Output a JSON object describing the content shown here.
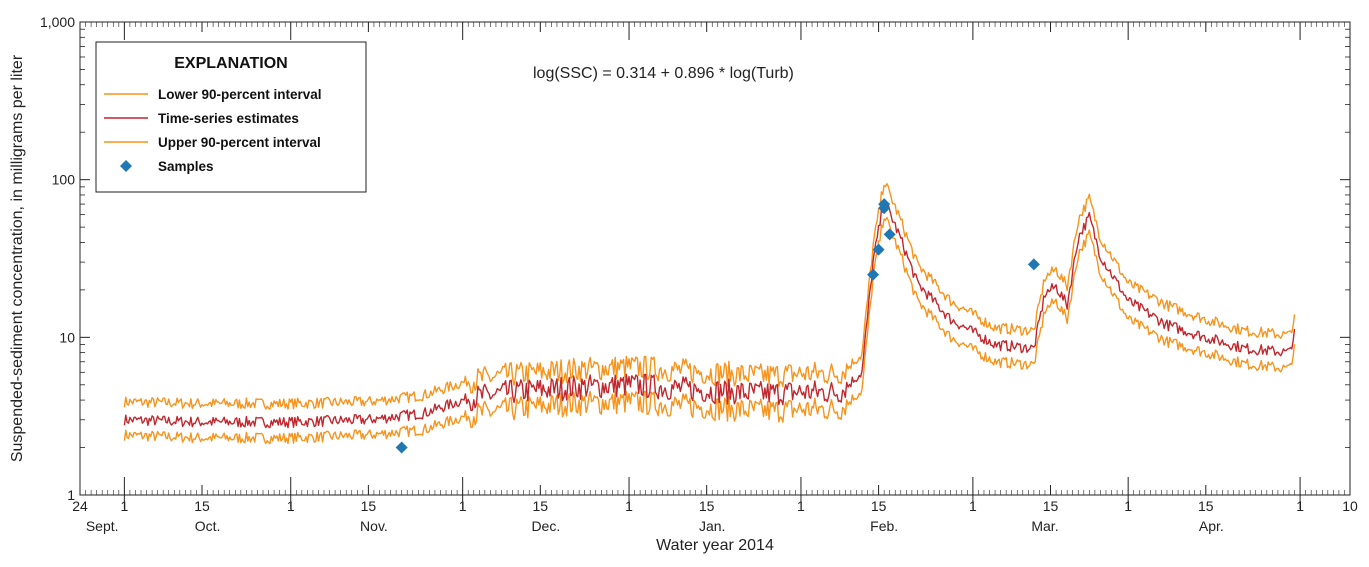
{
  "chart_data": {
    "type": "line",
    "xlabel": "Water year 2014",
    "ylabel": "Suspended-sediment concentration, in milligrams per liter",
    "y_scale": "log",
    "ylim": [
      1,
      1000
    ],
    "y_ticks": [
      {
        "value": 1,
        "label": "1"
      },
      {
        "value": 10,
        "label": "10"
      },
      {
        "value": 100,
        "label": "100"
      },
      {
        "value": 1000,
        "label": "1,000"
      }
    ],
    "xlim": [
      "2013-08-24",
      "2014-04-10"
    ],
    "x_tick_labels": [
      {
        "date": "2013-08-24",
        "label": "24"
      },
      {
        "date": "2013-09-01",
        "label": "1"
      },
      {
        "date": "2013-09-15",
        "label": "15"
      },
      {
        "date": "2013-10-01",
        "label": "1"
      },
      {
        "date": "2013-10-15",
        "label": "15"
      },
      {
        "date": "2013-11-01",
        "label": "1"
      },
      {
        "date": "2013-11-15",
        "label": "15"
      },
      {
        "date": "2013-12-01",
        "label": "1"
      },
      {
        "date": "2013-12-15",
        "label": "15"
      },
      {
        "date": "2014-01-01",
        "label": "1"
      },
      {
        "date": "2014-01-15",
        "label": "15"
      },
      {
        "date": "2014-02-01",
        "label": "1"
      },
      {
        "date": "2014-02-15",
        "label": "15"
      },
      {
        "date": "2014-03-01",
        "label": "1"
      },
      {
        "date": "2014-03-15",
        "label": "15"
      },
      {
        "date": "2014-04-01",
        "label": "1"
      },
      {
        "date": "2014-04-10",
        "label": "10"
      }
    ],
    "month_labels": [
      {
        "date": "2013-08-28",
        "label": "Sept."
      },
      {
        "date": "2013-09-16",
        "label": "Oct."
      },
      {
        "date": "2013-10-16",
        "label": "Nov."
      },
      {
        "date": "2013-11-16",
        "label": "Dec."
      },
      {
        "date": "2013-12-16",
        "label": "Jan."
      },
      {
        "date": "2014-01-16",
        "label": "Feb."
      },
      {
        "date": "2014-02-14",
        "label": "Mar."
      },
      {
        "date": "2014-03-16",
        "label": "Apr."
      }
    ],
    "annotation": "log(SSC) = 0.314 + 0.896 * log(Turb)",
    "legend": {
      "title": "EXPLANATION",
      "position": "top-left",
      "entries": [
        {
          "label": "Lower 90-percent interval",
          "kind": "line",
          "color": "#F7941D"
        },
        {
          "label": "Time-series estimates",
          "kind": "line",
          "color": "#C1272D"
        },
        {
          "label": "Upper 90-percent interval",
          "kind": "line",
          "color": "#F7941D"
        },
        {
          "label": "Samples",
          "kind": "marker",
          "color": "#1F77B4"
        }
      ]
    },
    "series": [
      {
        "name": "Time-series estimates",
        "color": "#C1272D",
        "x": [
          "2013-09-01",
          "2013-09-15",
          "2013-10-01",
          "2013-10-15",
          "2013-10-25",
          "2013-11-02",
          "2013-11-10",
          "2013-11-20",
          "2013-12-01",
          "2013-12-15",
          "2013-12-25",
          "2014-01-01",
          "2014-01-08",
          "2014-01-12",
          "2014-01-14",
          "2014-01-16",
          "2014-01-19",
          "2014-01-22",
          "2014-01-28",
          "2014-02-05",
          "2014-02-12",
          "2014-02-14",
          "2014-02-16",
          "2014-02-18",
          "2014-02-20",
          "2014-02-22",
          "2014-02-24",
          "2014-03-01",
          "2014-03-08",
          "2014-03-15",
          "2014-03-22",
          "2014-03-30",
          "2014-03-31"
        ],
        "values": [
          3.0,
          2.9,
          2.9,
          3.0,
          3.3,
          4.1,
          4.5,
          4.8,
          5.0,
          4.6,
          4.4,
          4.5,
          4.5,
          6.0,
          30,
          75,
          42,
          22,
          13,
          9.0,
          8.5,
          19,
          21,
          16,
          43,
          58,
          33,
          17,
          12,
          10,
          8.5,
          8.0,
          10.5
        ]
      },
      {
        "name": "Lower 90-percent interval",
        "color": "#F7941D",
        "x": [
          "2013-09-01",
          "2013-09-15",
          "2013-10-01",
          "2013-10-15",
          "2013-10-25",
          "2013-11-02",
          "2013-11-10",
          "2013-11-20",
          "2013-12-01",
          "2013-12-15",
          "2013-12-25",
          "2014-01-01",
          "2014-01-08",
          "2014-01-12",
          "2014-01-14",
          "2014-01-16",
          "2014-01-19",
          "2014-01-22",
          "2014-01-28",
          "2014-02-05",
          "2014-02-12",
          "2014-02-14",
          "2014-02-16",
          "2014-02-18",
          "2014-02-20",
          "2014-02-22",
          "2014-02-24",
          "2014-03-01",
          "2014-03-08",
          "2014-03-15",
          "2014-03-22",
          "2014-03-30",
          "2014-03-31"
        ],
        "values": [
          2.4,
          2.3,
          2.3,
          2.4,
          2.6,
          3.2,
          3.5,
          3.8,
          3.9,
          3.6,
          3.4,
          3.5,
          3.5,
          4.6,
          24,
          60,
          33,
          17,
          10,
          7.0,
          6.7,
          15,
          17,
          13,
          34,
          45,
          26,
          13,
          9.4,
          8.0,
          6.8,
          6.3,
          8.4
        ]
      },
      {
        "name": "Upper 90-percent interval",
        "color": "#F7941D",
        "x": [
          "2013-09-01",
          "2013-09-15",
          "2013-10-01",
          "2013-10-15",
          "2013-10-25",
          "2013-11-02",
          "2013-11-10",
          "2013-11-20",
          "2013-12-01",
          "2013-12-15",
          "2013-12-25",
          "2014-01-01",
          "2014-01-08",
          "2014-01-12",
          "2014-01-14",
          "2014-01-16",
          "2014-01-19",
          "2014-01-22",
          "2014-01-28",
          "2014-02-05",
          "2014-02-12",
          "2014-02-14",
          "2014-02-16",
          "2014-02-18",
          "2014-02-20",
          "2014-02-22",
          "2014-02-24",
          "2014-03-01",
          "2014-03-08",
          "2014-03-15",
          "2014-03-22",
          "2014-03-30",
          "2014-03-31"
        ],
        "values": [
          3.9,
          3.8,
          3.8,
          3.9,
          4.3,
          5.3,
          5.8,
          6.2,
          6.5,
          6.0,
          5.7,
          5.9,
          5.9,
          7.8,
          38,
          98,
          55,
          29,
          17,
          11.5,
          11,
          24,
          27,
          21,
          56,
          76,
          43,
          22,
          16,
          13,
          11,
          10.3,
          13
        ]
      }
    ],
    "samples": {
      "name": "Samples",
      "color": "#1F77B4",
      "x": [
        "2013-10-21",
        "2014-01-14",
        "2014-01-15",
        "2014-01-16",
        "2014-01-16",
        "2014-01-17",
        "2014-02-12"
      ],
      "values": [
        2.0,
        25,
        36,
        66,
        70,
        45,
        29
      ]
    }
  }
}
